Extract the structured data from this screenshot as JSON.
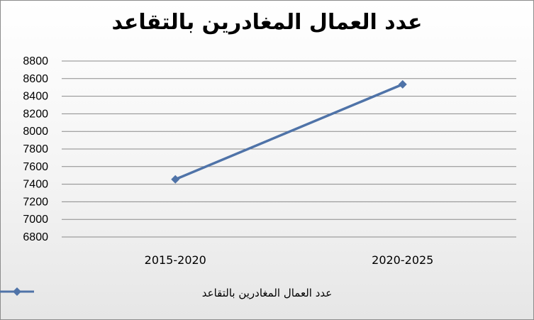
{
  "chart_data": {
    "type": "line",
    "title": "عدد  العمال المغادرين بالتقاعد",
    "categories": [
      "2015-2020",
      "2020-2025"
    ],
    "series": [
      {
        "name": "عدد  العمال المغادرين بالتقاعد",
        "values": [
          7455,
          8535
        ]
      }
    ],
    "ylim": [
      6800,
      8800
    ],
    "yticks": [
      8800,
      8600,
      8400,
      8200,
      8000,
      7800,
      7600,
      7400,
      7200,
      7000,
      6800
    ],
    "grid": true,
    "legend_position": "bottom",
    "series_color": "#4F73A8"
  }
}
